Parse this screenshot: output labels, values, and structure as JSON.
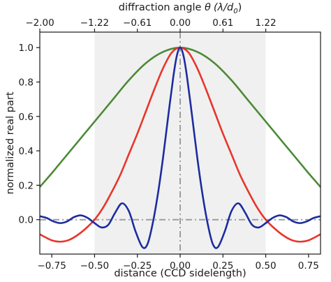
{
  "chart_data": {
    "type": "line",
    "title": "",
    "xlabel": "distance (CCD sidelength)",
    "ylabel": "normalized real part",
    "top_xlabel_prefix": "diffraction angle ",
    "top_xlabel_symbol": "θ",
    "top_xlabel_units": "(λ/d",
    "top_xlabel_sub": "0",
    "top_xlabel_close": ")",
    "xlim": [
      -0.82,
      0.82
    ],
    "ylim": [
      -0.2,
      1.09
    ],
    "xticks": [
      -0.75,
      -0.5,
      -0.25,
      0.0,
      0.25,
      0.5,
      0.75
    ],
    "xtick_labels": [
      "−0.75",
      "−0.50",
      "−0.25",
      "0.00",
      "0.25",
      "0.50",
      "0.75"
    ],
    "yticks": [
      0.0,
      0.2,
      0.4,
      0.6,
      0.8,
      1.0
    ],
    "ytick_labels": [
      "0.0",
      "0.2",
      "0.4",
      "0.6",
      "0.8",
      "1.0"
    ],
    "top_xticks": [
      -0.82,
      -0.5,
      -0.25,
      0.0,
      0.25,
      0.5
    ],
    "top_xtick_labels": [
      "−2.00",
      "−1.22",
      "−0.61",
      "0.00",
      "0.61",
      "1.22"
    ],
    "shaded_region": [
      -0.5,
      0.5
    ],
    "reference_lines": {
      "horizontal_y": 0.0,
      "vertical_x": 0.0,
      "style": "dash-dot",
      "color": "#9e9e9e"
    },
    "grid": false,
    "legend": "none",
    "series": [
      {
        "color": "#4c8a35",
        "x": [
          -0.82,
          -0.75,
          -0.7,
          -0.6,
          -0.5,
          -0.4,
          -0.3,
          -0.2,
          -0.1,
          0.0,
          0.1,
          0.2,
          0.3,
          0.4,
          0.5,
          0.6,
          0.7,
          0.75,
          0.82
        ],
        "y": [
          0.19,
          0.27,
          0.33,
          0.45,
          0.57,
          0.69,
          0.81,
          0.91,
          0.975,
          1.0,
          0.975,
          0.91,
          0.81,
          0.69,
          0.57,
          0.45,
          0.33,
          0.27,
          0.19
        ]
      },
      {
        "color": "#e8352b",
        "x": [
          -0.82,
          -0.75,
          -0.7,
          -0.65,
          -0.6,
          -0.55,
          -0.5,
          -0.45,
          -0.4,
          -0.35,
          -0.3,
          -0.25,
          -0.2,
          -0.15,
          -0.1,
          -0.05,
          0.0,
          0.05,
          0.1,
          0.15,
          0.2,
          0.25,
          0.3,
          0.35,
          0.4,
          0.45,
          0.5,
          0.55,
          0.6,
          0.65,
          0.7,
          0.75,
          0.82
        ],
        "y": [
          -0.085,
          -0.12,
          -0.128,
          -0.118,
          -0.09,
          -0.05,
          0.0,
          0.07,
          0.16,
          0.26,
          0.38,
          0.5,
          0.63,
          0.76,
          0.88,
          0.97,
          1.0,
          0.97,
          0.88,
          0.76,
          0.63,
          0.5,
          0.38,
          0.26,
          0.16,
          0.07,
          0.0,
          -0.05,
          -0.09,
          -0.118,
          -0.128,
          -0.12,
          -0.085
        ]
      },
      {
        "color": "#1c2ca0",
        "x": [
          -0.82,
          -0.78,
          -0.74,
          -0.7,
          -0.66,
          -0.62,
          -0.58,
          -0.54,
          -0.5,
          -0.46,
          -0.42,
          -0.38,
          -0.34,
          -0.3,
          -0.26,
          -0.22,
          -0.19,
          -0.16,
          -0.13,
          -0.1,
          -0.07,
          -0.04,
          -0.02,
          0.0,
          0.02,
          0.04,
          0.07,
          0.1,
          0.13,
          0.16,
          0.19,
          0.22,
          0.26,
          0.3,
          0.34,
          0.38,
          0.42,
          0.46,
          0.5,
          0.54,
          0.58,
          0.62,
          0.66,
          0.7,
          0.74,
          0.78,
          0.82
        ],
        "y": [
          0.02,
          0.01,
          -0.01,
          -0.02,
          -0.01,
          0.015,
          0.025,
          0.01,
          -0.02,
          -0.045,
          -0.03,
          0.04,
          0.095,
          0.05,
          -0.07,
          -0.16,
          -0.14,
          -0.02,
          0.15,
          0.36,
          0.6,
          0.83,
          0.95,
          1.0,
          0.95,
          0.83,
          0.6,
          0.36,
          0.15,
          -0.02,
          -0.14,
          -0.16,
          -0.07,
          0.05,
          0.095,
          0.04,
          -0.03,
          -0.045,
          -0.02,
          0.01,
          0.025,
          0.015,
          -0.01,
          -0.02,
          -0.01,
          0.01,
          0.02
        ]
      }
    ]
  }
}
